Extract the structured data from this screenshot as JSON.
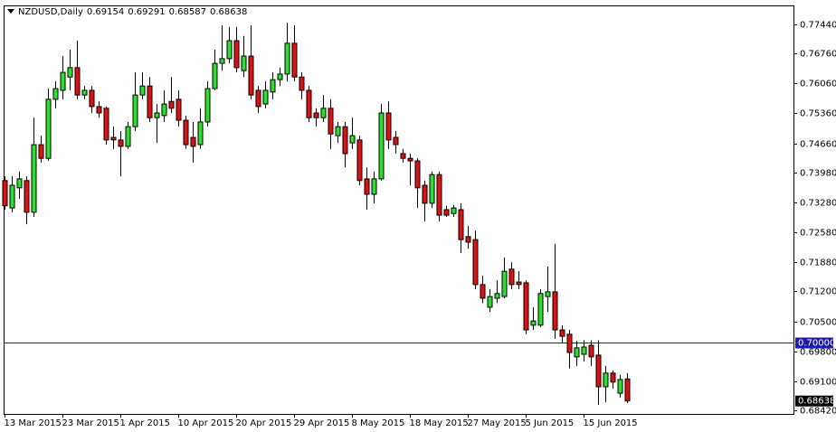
{
  "chart_data": {
    "type": "candlestick",
    "title": "NZDUSD,Daily",
    "categories": [
      "13 Mar 2015",
      null,
      null,
      null,
      null,
      null,
      null,
      null,
      "23 Mar 2015",
      null,
      null,
      null,
      null,
      null,
      null,
      null,
      "1 Apr 2015",
      null,
      null,
      null,
      null,
      null,
      null,
      null,
      "10 Apr 2015",
      null,
      null,
      null,
      null,
      null,
      null,
      null,
      "20 Apr 2015",
      null,
      null,
      null,
      null,
      null,
      null,
      null,
      "29 Apr 2015",
      null,
      null,
      null,
      null,
      null,
      null,
      null,
      "8 May 2015",
      null,
      null,
      null,
      null,
      null,
      null,
      null,
      "18 May 2015",
      null,
      null,
      null,
      null,
      null,
      null,
      null,
      "27 May 2015",
      null,
      null,
      null,
      null,
      null,
      null,
      null,
      "5 Jun 2015",
      null,
      null,
      null,
      null,
      null,
      null,
      null,
      "15 Jun 2015",
      null,
      null,
      null,
      null,
      null,
      null
    ],
    "open": [
      0.7379,
      0.7315,
      0.7362,
      0.7379,
      0.7305,
      0.7463,
      0.7431,
      0.7569,
      0.759,
      0.7621,
      0.7643,
      0.7579,
      0.759,
      0.7552,
      0.7548,
      0.748,
      0.7474,
      0.7459,
      0.7505,
      0.7579,
      0.76,
      0.7526,
      0.7531,
      0.7564,
      0.7569,
      0.752,
      0.748,
      0.7463,
      0.7516,
      0.7594,
      0.7653,
      0.7664,
      0.7706,
      0.7636,
      0.767,
      0.759,
      0.7558,
      0.7586,
      0.7615,
      0.7628,
      0.77,
      0.7621,
      0.759,
      0.7537,
      0.7526,
      0.7548,
      0.7484,
      0.7505,
      0.7467,
      0.7474,
      0.7383,
      0.7347,
      0.7383,
      0.7537,
      0.748,
      0.7442,
      0.7431,
      0.7425,
      0.7368,
      0.7326,
      0.7393,
      0.7311,
      0.7302,
      0.7311,
      0.7248,
      0.7241,
      0.7136,
      0.7083,
      0.7104,
      0.7108,
      0.7172,
      0.7142,
      0.714,
      0.7041,
      0.7041,
      0.7108,
      0.7119,
      0.703,
      0.702,
      0.6967,
      0.6973,
      0.6994,
      0.6971,
      0.6897,
      0.6929,
      0.6882,
      0.69154
    ],
    "high": [
      0.7389,
      0.7389,
      0.74,
      0.7389,
      0.7526,
      0.7484,
      0.7594,
      0.7611,
      0.767,
      0.7685,
      0.7706,
      0.76,
      0.76,
      0.7564,
      0.7552,
      0.7505,
      0.7495,
      0.7516,
      0.7632,
      0.7632,
      0.7621,
      0.7558,
      0.759,
      0.7621,
      0.759,
      0.7531,
      0.7516,
      0.7548,
      0.7611,
      0.7685,
      0.7742,
      0.7738,
      0.7738,
      0.7717,
      0.7742,
      0.76,
      0.7611,
      0.7632,
      0.7643,
      0.7748,
      0.7742,
      0.7632,
      0.76,
      0.7548,
      0.7579,
      0.7569,
      0.7516,
      0.7516,
      0.7526,
      0.7484,
      0.741,
      0.74,
      0.7558,
      0.7564,
      0.7495,
      0.7453,
      0.7442,
      0.7431,
      0.7379,
      0.74,
      0.74,
      0.732,
      0.7322,
      0.7326,
      0.7273,
      0.7262,
      0.7157,
      0.7125,
      0.7146,
      0.7199,
      0.7188,
      0.7167,
      0.7146,
      0.7083,
      0.7125,
      0.7178,
      0.7231,
      0.7041,
      0.703,
      0.7004,
      0.7006,
      0.7006,
      0.7006,
      0.6946,
      0.6935,
      0.6925,
      0.69291
    ],
    "low": [
      0.7311,
      0.7305,
      0.7336,
      0.7277,
      0.7294,
      0.7421,
      0.7425,
      0.7548,
      0.7569,
      0.759,
      0.7569,
      0.7569,
      0.7537,
      0.7526,
      0.7463,
      0.7453,
      0.7389,
      0.7453,
      0.7495,
      0.7569,
      0.7516,
      0.7467,
      0.7516,
      0.7537,
      0.7505,
      0.7453,
      0.7421,
      0.7453,
      0.7505,
      0.759,
      0.7636,
      0.7653,
      0.7632,
      0.7621,
      0.7569,
      0.7537,
      0.7548,
      0.7569,
      0.76,
      0.7611,
      0.7611,
      0.7569,
      0.7516,
      0.7505,
      0.7516,
      0.7453,
      0.7467,
      0.741,
      0.7453,
      0.7368,
      0.7311,
      0.7326,
      0.7379,
      0.7453,
      0.7442,
      0.7421,
      0.7368,
      0.7315,
      0.7284,
      0.7315,
      0.7284,
      0.7294,
      0.7294,
      0.721,
      0.722,
      0.7125,
      0.7093,
      0.7072,
      0.7093,
      0.7104,
      0.7125,
      0.7125,
      0.702,
      0.703,
      0.7036,
      0.7072,
      0.7009,
      0.6999,
      0.694,
      0.6946,
      0.6956,
      0.6946,
      0.6855,
      0.6861,
      0.6893,
      0.6872,
      0.68587
    ],
    "close": [
      0.732,
      0.7368,
      0.7383,
      0.7305,
      0.7463,
      0.7431,
      0.7569,
      0.7594,
      0.7632,
      0.7643,
      0.7579,
      0.759,
      0.7552,
      0.7537,
      0.7474,
      0.7474,
      0.7459,
      0.7505,
      0.7579,
      0.76,
      0.7526,
      0.7537,
      0.7558,
      0.7548,
      0.752,
      0.7463,
      0.7459,
      0.7516,
      0.7594,
      0.7653,
      0.7664,
      0.7706,
      0.7643,
      0.767,
      0.7579,
      0.7552,
      0.759,
      0.7615,
      0.7628,
      0.77,
      0.7621,
      0.759,
      0.7526,
      0.7526,
      0.7548,
      0.7488,
      0.7505,
      0.7442,
      0.7484,
      0.7379,
      0.7347,
      0.7383,
      0.7537,
      0.7474,
      0.7463,
      0.7431,
      0.7425,
      0.7362,
      0.7326,
      0.7393,
      0.7298,
      0.7298,
      0.7315,
      0.7241,
      0.7235,
      0.7136,
      0.7104,
      0.7108,
      0.7115,
      0.7167,
      0.7136,
      0.7136,
      0.703,
      0.7051,
      0.7115,
      0.7119,
      0.703,
      0.7015,
      0.6977,
      0.6988,
      0.699,
      0.6967,
      0.6897,
      0.6929,
      0.6908,
      0.6914,
      0.68638
    ],
    "up_color": "#2ee02e",
    "down_color": "#dd1111",
    "ylim": [
      0.68336,
      0.77884
    ],
    "yticks": [
      {
        "value": 0.7744,
        "label": "0.77440"
      },
      {
        "value": 0.7676,
        "label": "0.76760"
      },
      {
        "value": 0.7606,
        "label": "0.76060"
      },
      {
        "value": 0.7536,
        "label": "0.75360"
      },
      {
        "value": 0.7466,
        "label": "0.74660"
      },
      {
        "value": 0.7398,
        "label": "0.73980"
      },
      {
        "value": 0.7328,
        "label": "0.73280"
      },
      {
        "value": 0.7258,
        "label": "0.72580"
      },
      {
        "value": 0.7188,
        "label": "0.71880"
      },
      {
        "value": 0.712,
        "label": "0.71200"
      },
      {
        "value": 0.705,
        "label": "0.70500"
      },
      {
        "value": 0.698,
        "label": "0.69800"
      },
      {
        "value": 0.691,
        "label": "0.69100"
      },
      {
        "value": 0.6842,
        "label": "0.68420"
      }
    ],
    "hline": {
      "value": 0.7,
      "label": "0.70000",
      "color": "#1c1ca8"
    }
  }
}
